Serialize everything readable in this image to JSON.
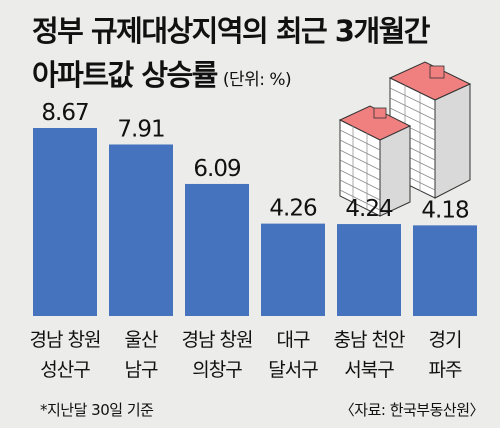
{
  "title_line1": "정부 규제대상지역의 최근 3개월간",
  "title_line2": "아파트값 상승률",
  "unit": "(단위: %)",
  "footnote": "*지난달 30일 기준",
  "source": "〈자료: 한국부동산원〉",
  "colors": {
    "bar": "#4673bd",
    "background": "#ececea",
    "building_roof": "#f07f7f"
  },
  "chart_data": {
    "type": "bar",
    "title": "정부 규제대상지역의 최근 3개월간 아파트값 상승률",
    "categories": [
      [
        "경남 창원",
        "성산구"
      ],
      [
        "울산",
        "남구"
      ],
      [
        "경남 창원",
        "의창구"
      ],
      [
        "대구",
        "달서구"
      ],
      [
        "충남 천안",
        "서북구"
      ],
      [
        "경기",
        "파주"
      ]
    ],
    "values": [
      8.67,
      7.91,
      6.09,
      4.26,
      4.24,
      4.18
    ],
    "value_labels": [
      "8.67",
      "7.91",
      "6.09",
      "4.26",
      "4.24",
      "4.18"
    ],
    "ylabel": "",
    "xlabel": "",
    "grid": false,
    "legend": "none"
  }
}
